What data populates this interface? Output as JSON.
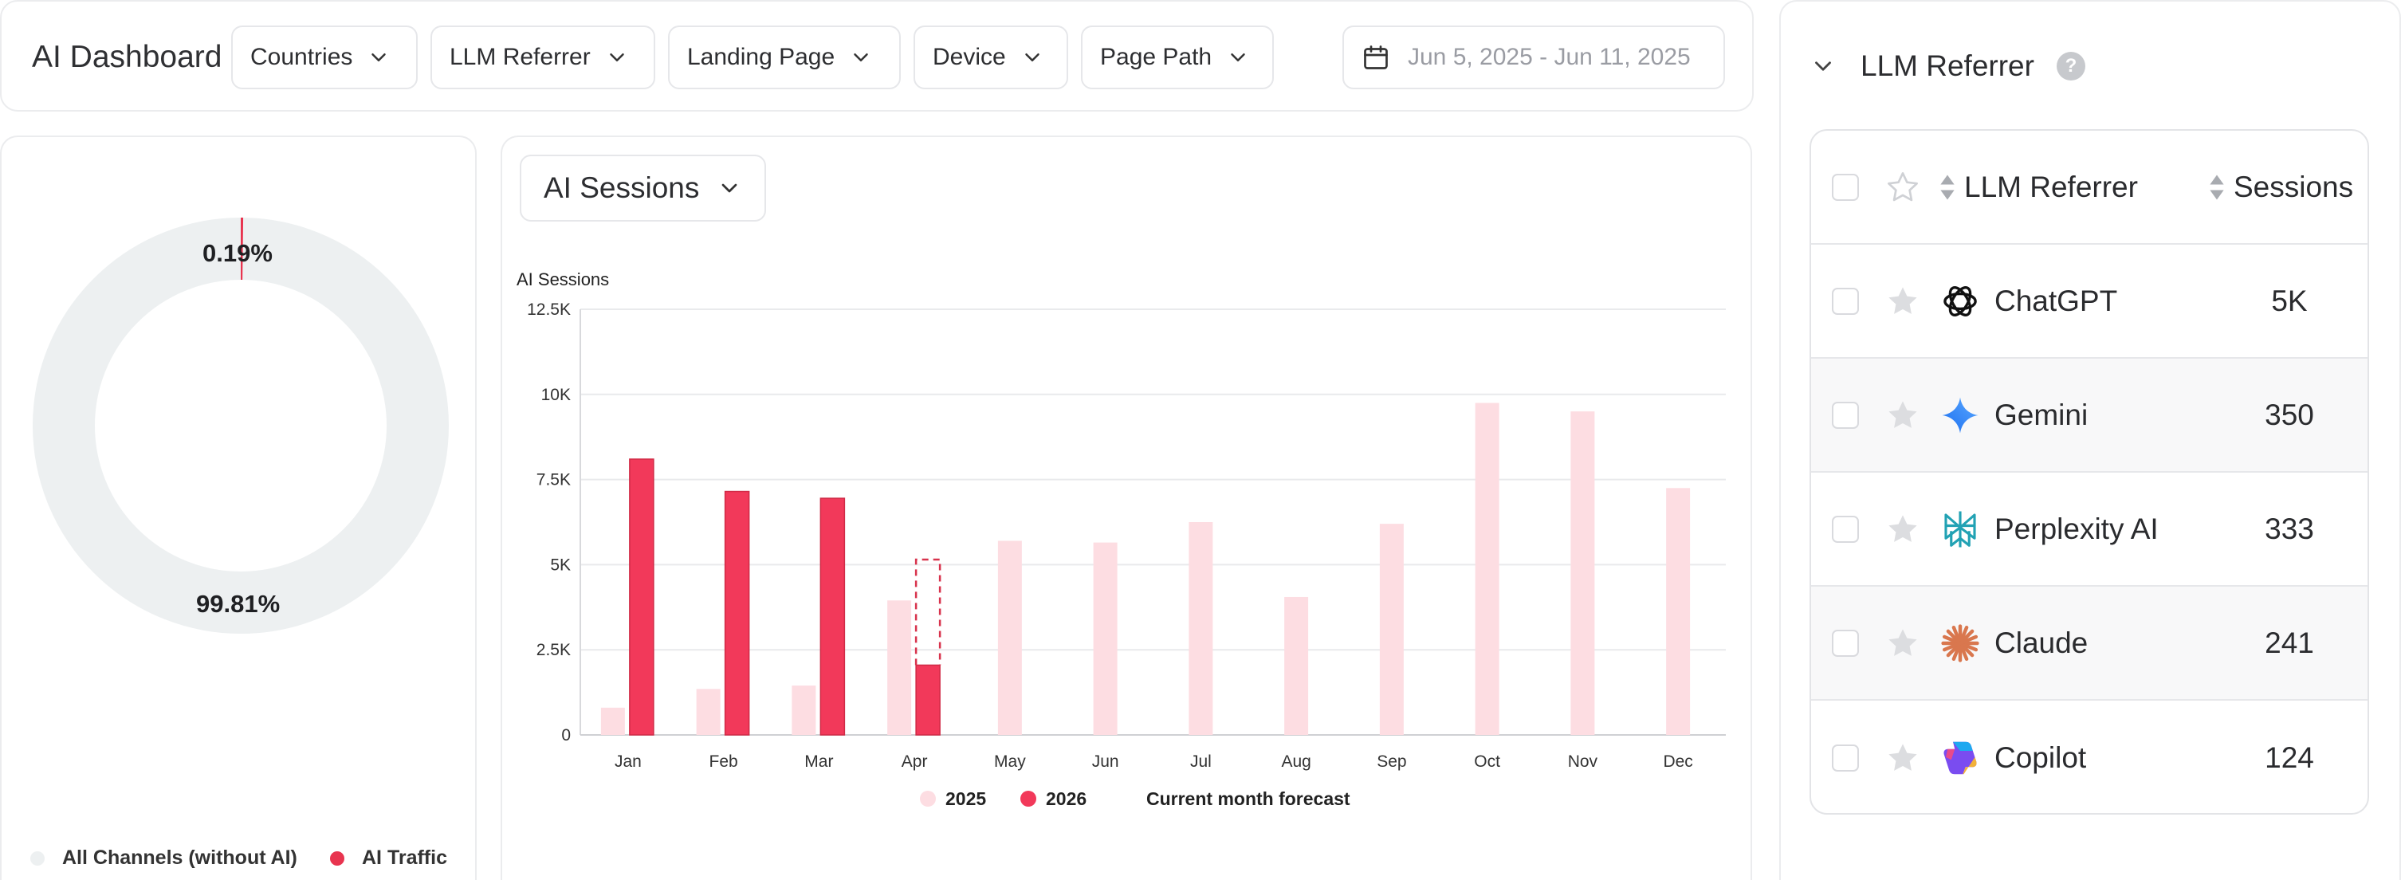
{
  "header": {
    "title": "AI Dashboard",
    "filters": {
      "countries": "Countries",
      "llm_referrer": "LLM Referrer",
      "landing_page": "Landing Page",
      "device": "Device",
      "page_path": "Page Path"
    },
    "date_range": "Jun 5, 2025 - Jun 11, 2025"
  },
  "donut": {
    "ai_pct_label": "0.19%",
    "rest_pct_label": "99.81%",
    "ai_fraction": 0.0019,
    "legend_rest": "All Channels (without AI)",
    "legend_ai": "AI Traffic",
    "colors": {
      "rest": "#edf0f1",
      "ai": "#e8344f"
    }
  },
  "chart": {
    "metric_select": "AI Sessions"
  },
  "chart_data": {
    "type": "bar",
    "ylabel": "AI Sessions",
    "ylim": [
      0,
      12500
    ],
    "yticks": [
      0,
      2500,
      5000,
      7500,
      10000,
      12500
    ],
    "ytick_labels": [
      "0",
      "2.5K",
      "5K",
      "7.5K",
      "10K",
      "12.5K"
    ],
    "categories": [
      "Jan",
      "Feb",
      "Mar",
      "Apr",
      "May",
      "Jun",
      "Jul",
      "Aug",
      "Sep",
      "Oct",
      "Nov",
      "Dec"
    ],
    "series": [
      {
        "name": "2025",
        "color": "#fddde2",
        "values": [
          800,
          1350,
          1450,
          3950,
          5700,
          5650,
          6250,
          4050,
          6200,
          9750,
          9500,
          7250
        ]
      },
      {
        "name": "2026",
        "color": "#f2395a",
        "values": [
          8100,
          7150,
          6950,
          2050,
          null,
          null,
          null,
          null,
          null,
          null,
          null,
          null
        ]
      }
    ],
    "forecast": {
      "name": "Current month forecast",
      "category": "Apr",
      "value": 5150,
      "color": "#d8334d"
    },
    "grid": true,
    "legend": "bottom"
  },
  "panel": {
    "title": "LLM Referrer",
    "help": "?",
    "columns": {
      "referrer": "LLM Referrer",
      "sessions": "Sessions"
    },
    "rows": [
      {
        "name": "ChatGPT",
        "sessions": "5K",
        "icon": "chatgpt-logo-icon"
      },
      {
        "name": "Gemini",
        "sessions": "350",
        "icon": "gemini-logo-icon"
      },
      {
        "name": "Perplexity AI",
        "sessions": "333",
        "icon": "perplexity-logo-icon"
      },
      {
        "name": "Claude",
        "sessions": "241",
        "icon": "claude-logo-icon"
      },
      {
        "name": "Copilot",
        "sessions": "124",
        "icon": "copilot-logo-icon"
      }
    ]
  }
}
